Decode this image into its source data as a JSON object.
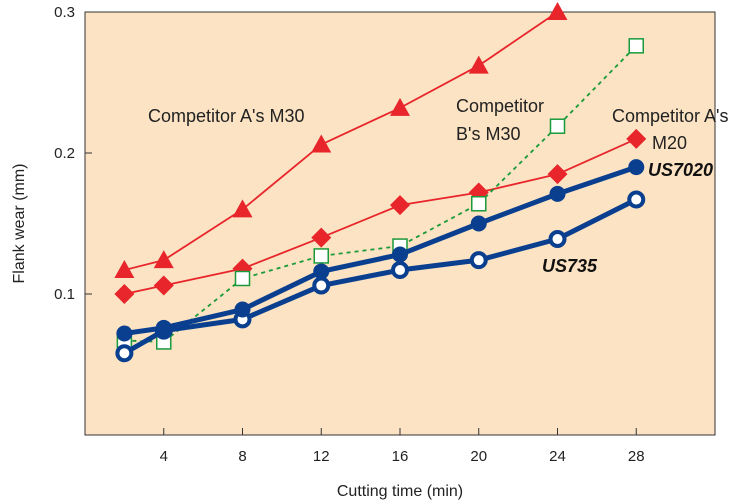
{
  "chart_data": {
    "type": "line",
    "title": "",
    "xlabel": "Cutting time (min)",
    "ylabel": "Flank wear (mm)",
    "xlim": [
      0,
      32
    ],
    "ylim": [
      0,
      0.3
    ],
    "x_ticks": [
      "4",
      "8",
      "12",
      "16",
      "20",
      "24",
      "28"
    ],
    "y_ticks": [
      "0.1",
      "0.2",
      "0.3"
    ],
    "grid": false,
    "background_color": "#fbe3c3",
    "series": [
      {
        "label": "Competitor A's M30",
        "color": "#e8252b",
        "marker": "triangle",
        "line": "solid",
        "x": [
          2,
          4,
          8,
          12,
          16,
          20,
          24
        ],
        "y": [
          0.117,
          0.124,
          0.16,
          0.206,
          0.232,
          0.262,
          0.3
        ]
      },
      {
        "label_lines": [
          "Competitor A's",
          "M20"
        ],
        "color": "#e8252b",
        "marker": "diamond",
        "line": "solid",
        "x": [
          2,
          4,
          8,
          12,
          16,
          20,
          24,
          28
        ],
        "y": [
          0.1,
          0.106,
          0.118,
          0.14,
          0.163,
          0.172,
          0.185,
          0.21
        ]
      },
      {
        "label_lines": [
          "Competitor",
          "B's M30"
        ],
        "color": "#1a9a3a",
        "marker": "square-open",
        "line": "dashed",
        "x": [
          2,
          4,
          8,
          12,
          16,
          20,
          24,
          28
        ],
        "y": [
          0.067,
          0.066,
          0.111,
          0.127,
          0.134,
          0.164,
          0.219,
          0.276
        ]
      },
      {
        "label": "US7020",
        "color": "#0a3f8f",
        "marker": "circle-filled",
        "line": "solid",
        "x": [
          2,
          4,
          8,
          12,
          16,
          20,
          24,
          28
        ],
        "y": [
          0.072,
          0.076,
          0.089,
          0.116,
          0.128,
          0.15,
          0.171,
          0.19
        ]
      },
      {
        "label": "US735",
        "color": "#0a3f8f",
        "marker": "circle-open",
        "line": "solid",
        "x": [
          2,
          4,
          8,
          12,
          16,
          20,
          24,
          28
        ],
        "y": [
          0.058,
          0.074,
          0.082,
          0.106,
          0.117,
          0.124,
          0.139,
          0.167
        ]
      }
    ]
  }
}
